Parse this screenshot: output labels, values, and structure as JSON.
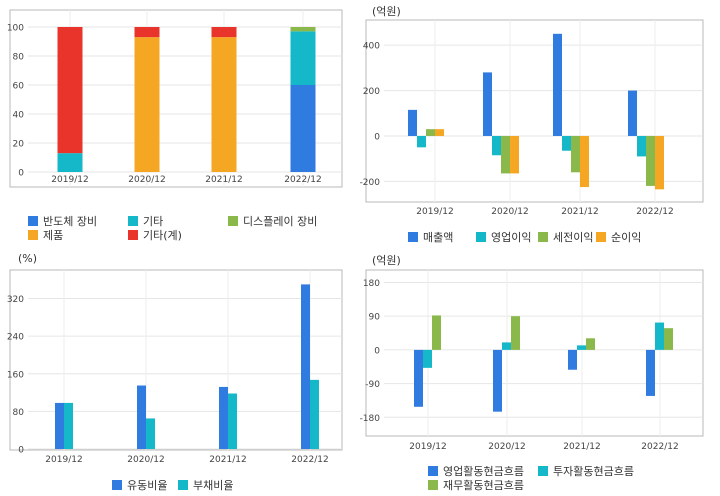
{
  "chart_data": [
    {
      "type": "bar",
      "stacked": true,
      "title": "",
      "unit": "",
      "categories": [
        "2019/12",
        "2020/12",
        "2021/12",
        "2022/12"
      ],
      "ylim": [
        0,
        100
      ],
      "yticks": [
        0,
        20,
        40,
        60,
        80,
        100
      ],
      "series": [
        {
          "name": "반도체 장비",
          "color": "#2f7be0",
          "values": [
            0,
            0,
            0,
            60
          ]
        },
        {
          "name": "제품",
          "color": "#f5a623",
          "values": [
            0,
            93,
            93,
            0
          ]
        },
        {
          "name": "기타",
          "color": "#15b8c8",
          "values": [
            13,
            0,
            0,
            37
          ]
        },
        {
          "name": "기타(계)",
          "color": "#e8342a",
          "values": [
            87,
            7,
            7,
            0
          ]
        },
        {
          "name": "디스플레이 장비",
          "color": "#8ab84a",
          "values": [
            0,
            0,
            0,
            3
          ]
        }
      ],
      "legend_order": [
        0,
        2,
        4,
        1,
        3
      ],
      "grid": true
    },
    {
      "type": "bar",
      "title": "",
      "unit": "(억원)",
      "categories": [
        "2019/12",
        "2020/12",
        "2021/12",
        "2022/12"
      ],
      "ylim": [
        -260,
        480
      ],
      "yticks": [
        -200,
        0,
        200,
        400
      ],
      "series": [
        {
          "name": "매출액",
          "color": "#2f7be0",
          "values": [
            115,
            280,
            450,
            200
          ]
        },
        {
          "name": "영업이익",
          "color": "#15b8c8",
          "values": [
            -50,
            -85,
            -65,
            -90
          ]
        },
        {
          "name": "세전이익",
          "color": "#8ab84a",
          "values": [
            30,
            -165,
            -160,
            -220
          ]
        },
        {
          "name": "순이익",
          "color": "#f5a623",
          "values": [
            30,
            -165,
            -225,
            -235
          ]
        }
      ],
      "grid": true
    },
    {
      "type": "bar",
      "title": "",
      "unit": "(%)",
      "categories": [
        "2019/12",
        "2020/12",
        "2021/12",
        "2022/12"
      ],
      "ylim": [
        0,
        370
      ],
      "yticks": [
        0,
        80,
        160,
        240,
        320
      ],
      "series": [
        {
          "name": "유동비율",
          "color": "#2f7be0",
          "values": [
            98,
            135,
            132,
            350
          ]
        },
        {
          "name": "부채비율",
          "color": "#15b8c8",
          "values": [
            98,
            65,
            118,
            147
          ]
        }
      ],
      "grid": true
    },
    {
      "type": "bar",
      "title": "",
      "unit": "(억원)",
      "categories": [
        "2019/12",
        "2020/12",
        "2021/12",
        "2022/12"
      ],
      "ylim": [
        -230,
        200
      ],
      "yticks": [
        -180,
        -90,
        0,
        90,
        180
      ],
      "series": [
        {
          "name": "영업활동현금흐름",
          "color": "#2f7be0",
          "values": [
            -152,
            -165,
            -53,
            -123
          ]
        },
        {
          "name": "투자활동현금흐름",
          "color": "#15b8c8",
          "values": [
            -48,
            20,
            12,
            73
          ]
        },
        {
          "name": "재무활동현금흐름",
          "color": "#8ab84a",
          "values": [
            92,
            90,
            31,
            58
          ]
        }
      ],
      "grid": true
    }
  ]
}
